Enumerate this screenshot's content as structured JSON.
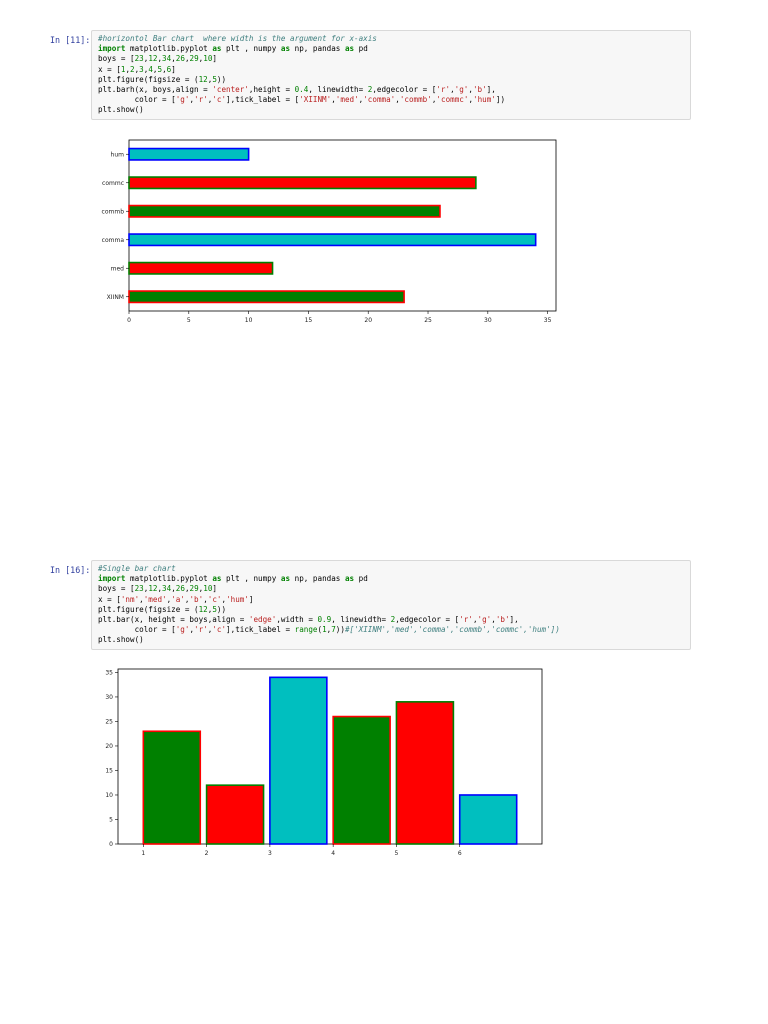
{
  "cells": [
    {
      "prompt": "In [11]:",
      "code_lines": [
        [
          {
            "t": "#horizontol Bar chart  where width is the argument for x-axis",
            "c": "cm"
          }
        ],
        [
          {
            "t": "import",
            "c": "kw"
          },
          {
            "t": " matplotlib.pyplot "
          },
          {
            "t": "as",
            "c": "kw"
          },
          {
            "t": " plt , numpy "
          },
          {
            "t": "as",
            "c": "kw"
          },
          {
            "t": " np, pandas "
          },
          {
            "t": "as",
            "c": "kw"
          },
          {
            "t": " pd"
          }
        ],
        [
          {
            "t": "boys = ["
          },
          {
            "t": "23",
            "c": "nm"
          },
          {
            "t": ","
          },
          {
            "t": "12",
            "c": "nm"
          },
          {
            "t": ","
          },
          {
            "t": "34",
            "c": "nm"
          },
          {
            "t": ","
          },
          {
            "t": "26",
            "c": "nm"
          },
          {
            "t": ","
          },
          {
            "t": "29",
            "c": "nm"
          },
          {
            "t": ","
          },
          {
            "t": "10",
            "c": "nm"
          },
          {
            "t": "]"
          }
        ],
        [
          {
            "t": "x = ["
          },
          {
            "t": "1",
            "c": "nm"
          },
          {
            "t": ","
          },
          {
            "t": "2",
            "c": "nm"
          },
          {
            "t": ","
          },
          {
            "t": "3",
            "c": "nm"
          },
          {
            "t": ","
          },
          {
            "t": "4",
            "c": "nm"
          },
          {
            "t": ","
          },
          {
            "t": "5",
            "c": "nm"
          },
          {
            "t": ","
          },
          {
            "t": "6",
            "c": "nm"
          },
          {
            "t": "]"
          }
        ],
        [
          {
            "t": "plt.figure(figsize = ("
          },
          {
            "t": "12",
            "c": "nm"
          },
          {
            "t": ","
          },
          {
            "t": "5",
            "c": "nm"
          },
          {
            "t": "))"
          }
        ],
        [
          {
            "t": "plt.barh(x, boys,align = "
          },
          {
            "t": "'center'",
            "c": "st"
          },
          {
            "t": ",height = "
          },
          {
            "t": "0.4",
            "c": "nm"
          },
          {
            "t": ", linewidth= "
          },
          {
            "t": "2",
            "c": "nm"
          },
          {
            "t": ",edgecolor = ["
          },
          {
            "t": "'r'",
            "c": "st"
          },
          {
            "t": ","
          },
          {
            "t": "'g'",
            "c": "st"
          },
          {
            "t": ","
          },
          {
            "t": "'b'",
            "c": "st"
          },
          {
            "t": "],"
          }
        ],
        [
          {
            "t": "        color = ["
          },
          {
            "t": "'g'",
            "c": "st"
          },
          {
            "t": ","
          },
          {
            "t": "'r'",
            "c": "st"
          },
          {
            "t": ","
          },
          {
            "t": "'c'",
            "c": "st"
          },
          {
            "t": "],tick_label = ["
          },
          {
            "t": "'XIINM'",
            "c": "st"
          },
          {
            "t": ","
          },
          {
            "t": "'med'",
            "c": "st"
          },
          {
            "t": ","
          },
          {
            "t": "'comma'",
            "c": "st"
          },
          {
            "t": ","
          },
          {
            "t": "'commb'",
            "c": "st"
          },
          {
            "t": ","
          },
          {
            "t": "'commc'",
            "c": "st"
          },
          {
            "t": ","
          },
          {
            "t": "'hum'",
            "c": "st"
          },
          {
            "t": "])"
          }
        ],
        [
          {
            "t": "plt.show()"
          }
        ]
      ]
    },
    {
      "prompt": "In [16]:",
      "code_lines": [
        [
          {
            "t": "#Single bar chart",
            "c": "cm"
          }
        ],
        [
          {
            "t": "import",
            "c": "kw"
          },
          {
            "t": " matplotlib.pyplot "
          },
          {
            "t": "as",
            "c": "kw"
          },
          {
            "t": " plt , numpy "
          },
          {
            "t": "as",
            "c": "kw"
          },
          {
            "t": " np, pandas "
          },
          {
            "t": "as",
            "c": "kw"
          },
          {
            "t": " pd"
          }
        ],
        [
          {
            "t": "boys = ["
          },
          {
            "t": "23",
            "c": "nm"
          },
          {
            "t": ","
          },
          {
            "t": "12",
            "c": "nm"
          },
          {
            "t": ","
          },
          {
            "t": "34",
            "c": "nm"
          },
          {
            "t": ","
          },
          {
            "t": "26",
            "c": "nm"
          },
          {
            "t": ","
          },
          {
            "t": "29",
            "c": "nm"
          },
          {
            "t": ","
          },
          {
            "t": "10",
            "c": "nm"
          },
          {
            "t": "]"
          }
        ],
        [
          {
            "t": "x = ["
          },
          {
            "t": "'nm'",
            "c": "st"
          },
          {
            "t": ","
          },
          {
            "t": "'med'",
            "c": "st"
          },
          {
            "t": ","
          },
          {
            "t": "'a'",
            "c": "st"
          },
          {
            "t": ","
          },
          {
            "t": "'b'",
            "c": "st"
          },
          {
            "t": ","
          },
          {
            "t": "'c'",
            "c": "st"
          },
          {
            "t": ","
          },
          {
            "t": "'hum'",
            "c": "st"
          },
          {
            "t": "]"
          }
        ],
        [
          {
            "t": "plt.figure(figsize = ("
          },
          {
            "t": "12",
            "c": "nm"
          },
          {
            "t": ","
          },
          {
            "t": "5",
            "c": "nm"
          },
          {
            "t": "))"
          }
        ],
        [
          {
            "t": "plt.bar(x, height = boys,align = "
          },
          {
            "t": "'edge'",
            "c": "st"
          },
          {
            "t": ",width = "
          },
          {
            "t": "0.9",
            "c": "nm"
          },
          {
            "t": ", linewidth= "
          },
          {
            "t": "2",
            "c": "nm"
          },
          {
            "t": ",edgecolor = ["
          },
          {
            "t": "'r'",
            "c": "st"
          },
          {
            "t": ","
          },
          {
            "t": "'g'",
            "c": "st"
          },
          {
            "t": ","
          },
          {
            "t": "'b'",
            "c": "st"
          },
          {
            "t": "],"
          }
        ],
        [
          {
            "t": "        color = ["
          },
          {
            "t": "'g'",
            "c": "st"
          },
          {
            "t": ","
          },
          {
            "t": "'r'",
            "c": "st"
          },
          {
            "t": ","
          },
          {
            "t": "'c'",
            "c": "st"
          },
          {
            "t": "],tick_label = "
          },
          {
            "t": "range",
            "c": "nm"
          },
          {
            "t": "("
          },
          {
            "t": "1",
            "c": "nm"
          },
          {
            "t": ","
          },
          {
            "t": "7",
            "c": "nm"
          },
          {
            "t": "))"
          },
          {
            "t": "#['XIINM','med','comma','commb','commc','hum'])",
            "c": "cm"
          }
        ],
        [
          {
            "t": "plt.show()"
          }
        ]
      ]
    }
  ],
  "chart_data": [
    {
      "type": "bar",
      "orientation": "horizontal",
      "categories": [
        "XIINM",
        "med",
        "comma",
        "commb",
        "commc",
        "hum"
      ],
      "values": [
        23,
        12,
        34,
        26,
        29,
        10
      ],
      "fill_colors": [
        "#008000",
        "#ff0000",
        "#00bfbf",
        "#008000",
        "#ff0000",
        "#00bfbf"
      ],
      "edge_colors": [
        "#ff0000",
        "#008000",
        "#0000ff",
        "#ff0000",
        "#008000",
        "#0000ff"
      ],
      "bar_height": 0.4,
      "xlim": [
        0,
        35.7
      ],
      "xticks": [
        "0",
        "5",
        "10",
        "15",
        "20",
        "25",
        "30",
        "35"
      ],
      "title": "",
      "xlabel": "",
      "ylabel": "",
      "grid": false
    },
    {
      "type": "bar",
      "orientation": "vertical",
      "categories": [
        "1",
        "2",
        "3",
        "4",
        "5",
        "6"
      ],
      "values": [
        23,
        12,
        34,
        26,
        29,
        10
      ],
      "fill_colors": [
        "#008000",
        "#ff0000",
        "#00bfbf",
        "#008000",
        "#ff0000",
        "#00bfbf"
      ],
      "edge_colors": [
        "#ff0000",
        "#008000",
        "#0000ff",
        "#ff0000",
        "#008000",
        "#0000ff"
      ],
      "bar_width": 0.9,
      "ylim": [
        0,
        35.7
      ],
      "yticks": [
        "0",
        "5",
        "10",
        "15",
        "20",
        "25",
        "30",
        "35"
      ],
      "title": "",
      "xlabel": "",
      "ylabel": "",
      "grid": false
    }
  ]
}
